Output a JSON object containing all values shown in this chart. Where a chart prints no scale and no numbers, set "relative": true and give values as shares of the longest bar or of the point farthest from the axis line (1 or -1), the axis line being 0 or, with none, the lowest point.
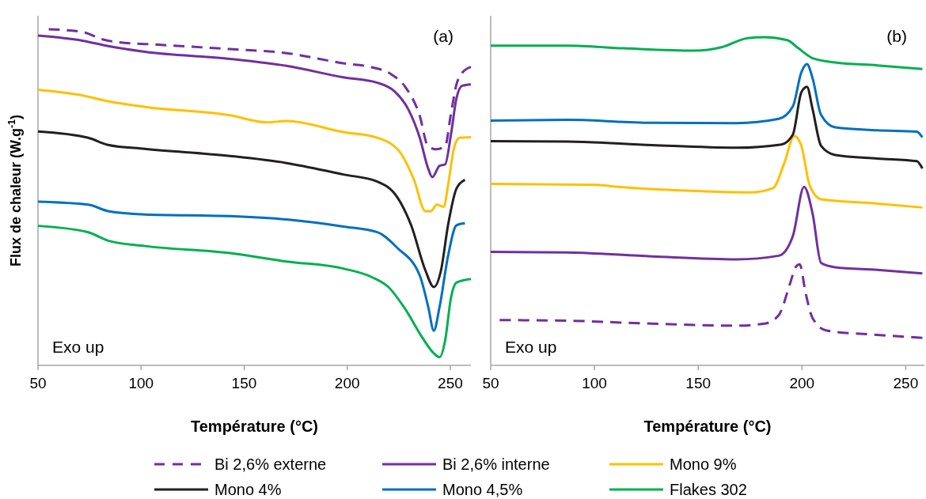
{
  "chart_data": [
    {
      "type": "line",
      "relative": true,
      "xlabel": "Température (°C)",
      "ylabel": "Flux de chaleur (W.g$^{-1}$)",
      "xlim": [
        50,
        260
      ],
      "xticks": [
        50,
        100,
        150,
        200,
        250
      ],
      "legend": "bottom",
      "annotations": [
        "(a)",
        "Exo up"
      ],
      "series": [
        {
          "name": "Bi 2,6% externe",
          "color": "#7030a0",
          "line_style": "dashed",
          "x": [
            55.2,
            71.6,
            81.3,
            88.1,
            108.7,
            143.1,
            170.5,
            198,
            211.8,
            221.4,
            228.2,
            235.1,
            239.2,
            243.3,
            247.5,
            250.2,
            253,
            255.7,
            260
          ],
          "values": [
            1.0,
            0.992,
            0.97,
            0.962,
            0.954,
            0.941,
            0.929,
            0.899,
            0.887,
            0.866,
            0.828,
            0.744,
            0.652,
            0.643,
            0.652,
            0.744,
            0.836,
            0.87,
            0.888
          ]
        },
        {
          "name": "Bi 2,6% interne",
          "color": "#7030a0",
          "x": [
            50,
            71.6,
            84.0,
            101.9,
            143.1,
            170.6,
            198.1,
            214.6,
            222.8,
            229.7,
            235.2,
            239.3,
            241.3,
            244.8,
            247.5,
            250.3,
            253.0,
            255.8,
            260
          ],
          "values": [
            0.981,
            0.966,
            0.95,
            0.933,
            0.912,
            0.891,
            0.857,
            0.841,
            0.816,
            0.761,
            0.677,
            0.585,
            0.56,
            0.594,
            0.598,
            0.686,
            0.795,
            0.832,
            0.836
          ]
        },
        {
          "name": "Mono 9%",
          "color": "#ffc000",
          "x": [
            50,
            71.6,
            84.0,
            101.9,
            143.1,
            161.0,
            170.6,
            198.1,
            214.6,
            225.5,
            232.4,
            237.9,
            240.6,
            243.4,
            246.8,
            248.9,
            251.7,
            254.4,
            260
          ],
          "values": [
            0.82,
            0.803,
            0.786,
            0.769,
            0.744,
            0.723,
            0.727,
            0.694,
            0.677,
            0.635,
            0.552,
            0.459,
            0.459,
            0.478,
            0.472,
            0.535,
            0.644,
            0.677,
            0.679
          ]
        },
        {
          "name": "Mono 4%",
          "color": "#231f20",
          "x": [
            50,
            74.4,
            84.0,
            101.9,
            143.1,
            170.6,
            198.1,
            214.6,
            224.2,
            231.0,
            237.9,
            242.0,
            245.5,
            248.9,
            253.0,
            257.1
          ],
          "values": [
            0.696,
            0.677,
            0.656,
            0.644,
            0.623,
            0.602,
            0.568,
            0.547,
            0.501,
            0.417,
            0.283,
            0.233,
            0.283,
            0.417,
            0.526,
            0.552
          ]
        },
        {
          "name": "Mono 4,5%",
          "color": "#0070c0",
          "x": [
            50,
            74.4,
            84.0,
            101.9,
            143.1,
            170.6,
            198.1,
            214.6,
            224.2,
            235.2,
            239.3,
            242.0,
            244.8,
            248.9,
            253.0,
            257.1
          ],
          "values": [
            0.487,
            0.478,
            0.459,
            0.449,
            0.444,
            0.434,
            0.413,
            0.396,
            0.35,
            0.267,
            0.174,
            0.103,
            0.174,
            0.325,
            0.417,
            0.423
          ]
        },
        {
          "name": "Flakes 302",
          "color": "#00b050",
          "x": [
            50,
            74.4,
            84.0,
            101.9,
            143.1,
            170.6,
            198.1,
            211.8,
            220.0,
            228.3,
            236.5,
            242.0,
            244.8,
            247.5,
            250.3,
            253.0,
            260
          ],
          "values": [
            0.415,
            0.396,
            0.371,
            0.355,
            0.334,
            0.309,
            0.288,
            0.263,
            0.233,
            0.166,
            0.082,
            0.036,
            0.024,
            0.074,
            0.2,
            0.246,
            0.257
          ]
        }
      ]
    },
    {
      "type": "line",
      "relative": true,
      "xlabel": "Température (°C)",
      "xlim": [
        50,
        259
      ],
      "xticks": [
        50,
        100,
        150,
        200,
        250
      ],
      "legend": "bottom",
      "annotations": [
        "(b)",
        "Exo up"
      ],
      "series": [
        {
          "name": "Bi 2,6% externe",
          "color": "#7030a0",
          "line_style": "dashed",
          "x": [
            54.3,
            87.0,
            127.7,
            168.4,
            182.0,
            188.8,
            194.2,
            196.9,
            198.9,
            201.7,
            205.1,
            211.9,
            236.3,
            258
          ],
          "values": [
            0.138,
            0.136,
            0.127,
            0.121,
            0.127,
            0.153,
            0.248,
            0.299,
            0.308,
            0.222,
            0.144,
            0.106,
            0.093,
            0.084
          ]
        },
        {
          "name": "Bi 2,6% interne",
          "color": "#7030a0",
          "x": [
            50,
            87.0,
            127.7,
            168.4,
            188.8,
            195.6,
            201.0,
            205.1,
            209.2,
            216.0,
            236.3,
            258
          ],
          "values": [
            0.346,
            0.344,
            0.332,
            0.323,
            0.334,
            0.394,
            0.544,
            0.463,
            0.312,
            0.299,
            0.291,
            0.28
          ]
        },
        {
          "name": "Mono 9%",
          "color": "#ffc000",
          "x": [
            50,
            100.5,
            111.4,
            141.3,
            175.2,
            186.1,
            191.5,
            196.3,
            199.7,
            203.7,
            209.2,
            236.3,
            258
          ],
          "values": [
            0.553,
            0.55,
            0.544,
            0.533,
            0.527,
            0.54,
            0.617,
            0.699,
            0.669,
            0.549,
            0.506,
            0.493,
            0.481
          ]
        },
        {
          "name": "Mono 4%",
          "color": "#231f20",
          "x": [
            50,
            87.0,
            127.7,
            168.4,
            190.1,
            195.6,
            199.7,
            202.4,
            205.1,
            209.2,
            216.0,
            236.3,
            255.3,
            258
          ],
          "values": [
            0.683,
            0.682,
            0.671,
            0.663,
            0.673,
            0.703,
            0.832,
            0.849,
            0.781,
            0.669,
            0.641,
            0.63,
            0.622,
            0.6
          ]
        },
        {
          "name": "Mono 4,5%",
          "color": "#0070c0",
          "x": [
            50,
            87.0,
            127.7,
            168.4,
            188.8,
            195.6,
            199.7,
            202.4,
            205.1,
            209.2,
            216.0,
            236.3,
            255.3,
            258
          ],
          "values": [
            0.746,
            0.748,
            0.739,
            0.738,
            0.751,
            0.789,
            0.893,
            0.918,
            0.875,
            0.763,
            0.725,
            0.716,
            0.712,
            0.695
          ]
        },
        {
          "name": "Flakes 302",
          "color": "#00b050",
          "x": [
            50,
            87.0,
            114.1,
            148.1,
            161.6,
            173.8,
            182.0,
            192.9,
            198.3,
            205.1,
            216.0,
            236.3,
            258
          ],
          "values": [
            0.974,
            0.974,
            0.966,
            0.959,
            0.97,
            0.997,
            1.0,
            0.991,
            0.966,
            0.936,
            0.923,
            0.914,
            0.903
          ]
        }
      ]
    }
  ]
}
